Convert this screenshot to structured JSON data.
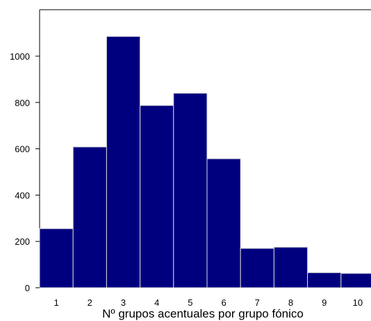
{
  "chart_data": {
    "type": "bar",
    "title": "",
    "xlabel": "Nº grupos acentuales por grupo fónico",
    "ylabel": "",
    "categories": [
      "1",
      "2",
      "3",
      "4",
      "5",
      "6",
      "7",
      "8",
      "9",
      "10"
    ],
    "values": [
      255,
      608,
      1085,
      787,
      840,
      557,
      170,
      175,
      65,
      62
    ],
    "ylim": [
      0,
      1200
    ],
    "yticks": [
      "0",
      "200",
      "400",
      "600",
      "800",
      "1000"
    ],
    "xticks": [
      "1",
      "2",
      "3",
      "4",
      "5",
      "6",
      "7",
      "8",
      "9",
      "10"
    ],
    "bar_color": "#00007f",
    "bar_edge_color": "#d8d8d8",
    "grid": false
  }
}
